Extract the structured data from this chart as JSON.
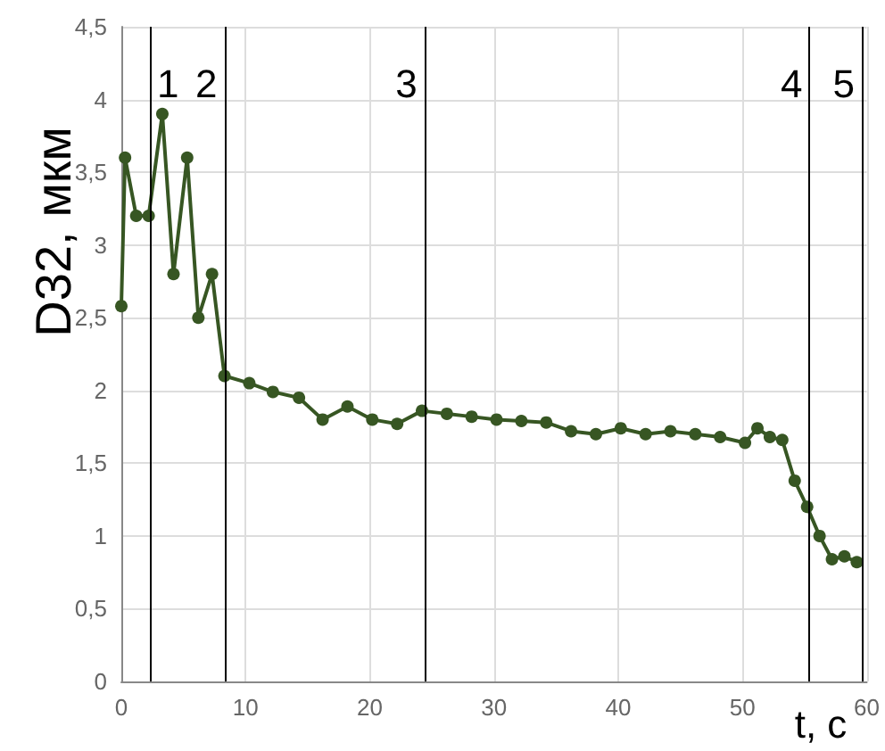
{
  "chart_data": {
    "type": "line",
    "xlabel": "t, c",
    "ylabel": "D32, мкм",
    "x": [
      0,
      0.3,
      1.2,
      2.2,
      3.3,
      4.2,
      5.3,
      6.2,
      7.3,
      8.3,
      10.3,
      12.2,
      14.3,
      16.2,
      18.2,
      20.2,
      22.2,
      24.2,
      26.2,
      28.2,
      30.2,
      32.2,
      34.2,
      36.2,
      38.2,
      40.2,
      42.2,
      44.2,
      46.2,
      48.2,
      50.2,
      51.2,
      52.2,
      53.2,
      54.2,
      55.2,
      56.2,
      57.2,
      58.2,
      59.2
    ],
    "series": [
      {
        "color": "#375623",
        "values": [
          2.58,
          3.6,
          3.2,
          3.2,
          3.9,
          2.8,
          3.6,
          2.5,
          2.8,
          2.1,
          2.05,
          1.99,
          1.95,
          1.8,
          1.89,
          1.8,
          1.77,
          1.86,
          1.84,
          1.82,
          1.8,
          1.79,
          1.78,
          1.72,
          1.7,
          1.74,
          1.7,
          1.72,
          1.7,
          1.68,
          1.64,
          1.74,
          1.68,
          1.66,
          1.38,
          1.2,
          1.0,
          0.84,
          0.86,
          0.82
        ]
      }
    ],
    "xlim": [
      0,
      60
    ],
    "xticks": [
      0,
      10,
      20,
      30,
      40,
      50,
      60
    ],
    "ylim": [
      0,
      4.5
    ],
    "yticks": [
      0,
      {
        "value": 0.5,
        "label": "0,5"
      },
      1,
      {
        "value": 1.5,
        "label": "1,5"
      },
      2,
      {
        "value": 2.5,
        "label": "2,5"
      },
      3,
      {
        "value": 3.5,
        "label": "3,5"
      },
      4,
      {
        "value": 4.5,
        "label": "4,5"
      }
    ],
    "ref_lines": [
      {
        "axis": "x",
        "value": 2.3
      },
      {
        "axis": "x",
        "value": 8.3
      },
      {
        "axis": "x",
        "value": 24.4
      },
      {
        "axis": "x",
        "value": 55.4
      },
      {
        "axis": "x",
        "value": 59.6
      }
    ],
    "annotations": [
      "1",
      "2",
      "3",
      "4",
      "5"
    ],
    "grid": true,
    "marker": "circle",
    "line_style": "solid"
  }
}
